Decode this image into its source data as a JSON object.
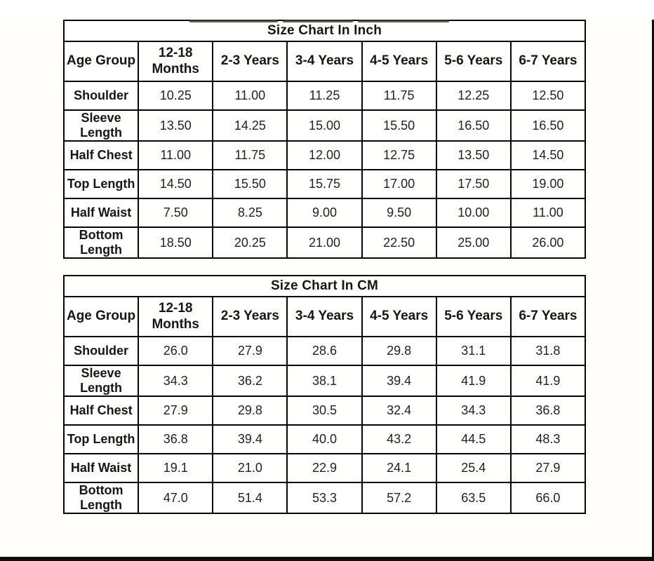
{
  "tables": [
    {
      "title": "Size Chart In Inch",
      "columns": [
        "Age Group",
        "12-18 Months",
        "2-3 Years",
        "3-4 Years",
        "4-5 Years",
        "5-6 Years",
        "6-7 Years"
      ],
      "rows": [
        {
          "label": "Shoulder",
          "values": [
            "10.25",
            "11.00",
            "11.25",
            "11.75",
            "12.25",
            "12.50"
          ]
        },
        {
          "label": "Sleeve Length",
          "values": [
            "13.50",
            "14.25",
            "15.00",
            "15.50",
            "16.50",
            "16.50"
          ]
        },
        {
          "label": "Half Chest",
          "values": [
            "11.00",
            "11.75",
            "12.00",
            "12.75",
            "13.50",
            "14.50"
          ]
        },
        {
          "label": "Top Length",
          "values": [
            "14.50",
            "15.50",
            "15.75",
            "17.00",
            "17.50",
            "19.00"
          ]
        },
        {
          "label": "Half Waist",
          "values": [
            "7.50",
            "8.25",
            "9.00",
            "9.50",
            "10.00",
            "11.00"
          ]
        },
        {
          "label": "Bottom Length",
          "values": [
            "18.50",
            "20.25",
            "21.00",
            "22.50",
            "25.00",
            "26.00"
          ]
        }
      ]
    },
    {
      "title": "Size Chart In CM",
      "columns": [
        "Age Group",
        "12-18 Months",
        "2-3 Years",
        "3-4 Years",
        "4-5 Years",
        "5-6 Years",
        "6-7 Years"
      ],
      "rows": [
        {
          "label": "Shoulder",
          "values": [
            "26.0",
            "27.9",
            "28.6",
            "29.8",
            "31.1",
            "31.8"
          ]
        },
        {
          "label": "Sleeve Length",
          "values": [
            "34.3",
            "36.2",
            "38.1",
            "39.4",
            "41.9",
            "41.9"
          ]
        },
        {
          "label": "Half Chest",
          "values": [
            "27.9",
            "29.8",
            "30.5",
            "32.4",
            "34.3",
            "36.8"
          ]
        },
        {
          "label": "Top Length",
          "values": [
            "36.8",
            "39.4",
            "40.0",
            "43.2",
            "44.5",
            "48.3"
          ]
        },
        {
          "label": "Half Waist",
          "values": [
            "19.1",
            "21.0",
            "22.9",
            "24.1",
            "25.4",
            "27.9"
          ]
        },
        {
          "label": "Bottom Length",
          "values": [
            "47.0",
            "51.4",
            "53.3",
            "57.2",
            "63.5",
            "66.0"
          ]
        }
      ]
    }
  ],
  "colors": {
    "border": "#050505",
    "text": "#161616",
    "page_bg": "#fffefb",
    "edge_bar": "#0c0c0c"
  }
}
